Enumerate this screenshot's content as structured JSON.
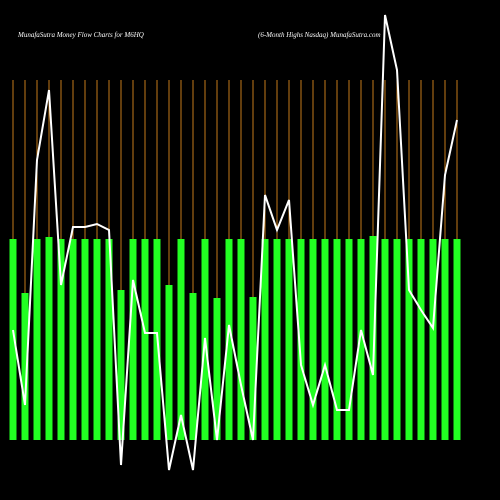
{
  "chart_data": {
    "type": "bar",
    "title": "MunafaSutra  Money Flow  Charts for M6HQ",
    "subtitle": "(6-Month Highs Nasdaq) MunafaSutra.com",
    "bar_color": "#22ff22",
    "line_color": "#ffffff",
    "rule_color": "#c47a1a",
    "ylim": [
      -60,
      440
    ],
    "series": [
      {
        "name": "bars",
        "values": [
          201,
          147,
          201,
          203,
          201,
          201,
          201,
          201,
          201,
          150,
          201,
          201,
          201,
          155,
          201,
          147,
          201,
          142,
          201,
          201,
          143,
          201,
          201,
          201,
          201,
          201,
          201,
          201,
          201,
          201,
          204,
          201,
          201,
          201,
          201,
          201,
          201,
          201
        ]
      },
      {
        "name": "line",
        "values": [
          110,
          35,
          280,
          350,
          155,
          213,
          213,
          216,
          210,
          -25,
          160,
          107,
          107,
          -30,
          25,
          -30,
          102,
          0,
          115,
          55,
          0,
          245,
          210,
          240,
          75,
          35,
          75,
          30,
          30,
          110,
          65,
          425,
          370,
          150,
          130,
          112,
          265,
          320
        ]
      }
    ]
  }
}
